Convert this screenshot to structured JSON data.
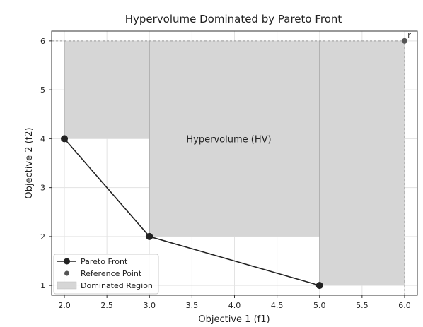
{
  "chart_data": {
    "type": "line",
    "title": "Hypervolume Dominated by Pareto Front",
    "xlabel": "Objective 1 (f1)",
    "ylabel": "Objective 2 (f2)",
    "xlim": [
      1.85,
      6.15
    ],
    "ylim": [
      0.8,
      6.2
    ],
    "xticks": [
      "2.0",
      "2.5",
      "3.0",
      "3.5",
      "4.0",
      "4.5",
      "5.0",
      "5.5",
      "6.0"
    ],
    "yticks": [
      "1",
      "2",
      "3",
      "4",
      "5",
      "6"
    ],
    "grid": true,
    "legend_position": "bottom-left",
    "pareto_front": {
      "name": "Pareto Front",
      "points": [
        {
          "x": 2,
          "y": 4
        },
        {
          "x": 3,
          "y": 2
        },
        {
          "x": 5,
          "y": 1
        }
      ]
    },
    "reference_point": {
      "name": "Reference Point",
      "x": 6,
      "y": 6,
      "label": "r"
    },
    "dominated_region": {
      "name": "Dominated Region"
    },
    "annotation": {
      "text": "Hypervolume (HV)",
      "x": 4.0,
      "y": 4.0
    },
    "colors": {
      "front": "#222222",
      "reference": "#555555",
      "region_fill": "#d6d6d6",
      "region_edge": "#a8a8a8",
      "grid": "#e3e3e3"
    }
  }
}
